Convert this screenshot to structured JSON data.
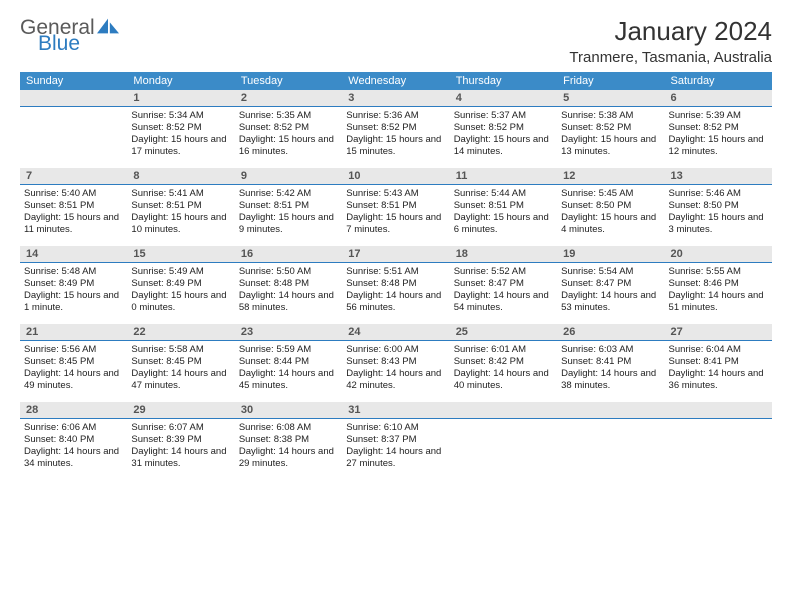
{
  "logo": {
    "part1": "General",
    "part2": "Blue",
    "icon_color": "#2d7cc0"
  },
  "title": "January 2024",
  "location": "Tranmere, Tasmania, Australia",
  "styles": {
    "header_bg": "#3b8bc8",
    "header_text": "#ffffff",
    "daynum_bg": "#e8e8e8",
    "daynum_border": "#2d7cc0",
    "body_bg": "#ffffff",
    "text_color": "#222222",
    "header_fontsize": 11,
    "daynum_fontsize": 11,
    "body_fontsize": 9.5
  },
  "day_headers": [
    "Sunday",
    "Monday",
    "Tuesday",
    "Wednesday",
    "Thursday",
    "Friday",
    "Saturday"
  ],
  "weeks": [
    [
      {
        "n": "",
        "sunrise": "",
        "sunset": "",
        "daylight": ""
      },
      {
        "n": "1",
        "sunrise": "Sunrise: 5:34 AM",
        "sunset": "Sunset: 8:52 PM",
        "daylight": "Daylight: 15 hours and 17 minutes."
      },
      {
        "n": "2",
        "sunrise": "Sunrise: 5:35 AM",
        "sunset": "Sunset: 8:52 PM",
        "daylight": "Daylight: 15 hours and 16 minutes."
      },
      {
        "n": "3",
        "sunrise": "Sunrise: 5:36 AM",
        "sunset": "Sunset: 8:52 PM",
        "daylight": "Daylight: 15 hours and 15 minutes."
      },
      {
        "n": "4",
        "sunrise": "Sunrise: 5:37 AM",
        "sunset": "Sunset: 8:52 PM",
        "daylight": "Daylight: 15 hours and 14 minutes."
      },
      {
        "n": "5",
        "sunrise": "Sunrise: 5:38 AM",
        "sunset": "Sunset: 8:52 PM",
        "daylight": "Daylight: 15 hours and 13 minutes."
      },
      {
        "n": "6",
        "sunrise": "Sunrise: 5:39 AM",
        "sunset": "Sunset: 8:52 PM",
        "daylight": "Daylight: 15 hours and 12 minutes."
      }
    ],
    [
      {
        "n": "7",
        "sunrise": "Sunrise: 5:40 AM",
        "sunset": "Sunset: 8:51 PM",
        "daylight": "Daylight: 15 hours and 11 minutes."
      },
      {
        "n": "8",
        "sunrise": "Sunrise: 5:41 AM",
        "sunset": "Sunset: 8:51 PM",
        "daylight": "Daylight: 15 hours and 10 minutes."
      },
      {
        "n": "9",
        "sunrise": "Sunrise: 5:42 AM",
        "sunset": "Sunset: 8:51 PM",
        "daylight": "Daylight: 15 hours and 9 minutes."
      },
      {
        "n": "10",
        "sunrise": "Sunrise: 5:43 AM",
        "sunset": "Sunset: 8:51 PM",
        "daylight": "Daylight: 15 hours and 7 minutes."
      },
      {
        "n": "11",
        "sunrise": "Sunrise: 5:44 AM",
        "sunset": "Sunset: 8:51 PM",
        "daylight": "Daylight: 15 hours and 6 minutes."
      },
      {
        "n": "12",
        "sunrise": "Sunrise: 5:45 AM",
        "sunset": "Sunset: 8:50 PM",
        "daylight": "Daylight: 15 hours and 4 minutes."
      },
      {
        "n": "13",
        "sunrise": "Sunrise: 5:46 AM",
        "sunset": "Sunset: 8:50 PM",
        "daylight": "Daylight: 15 hours and 3 minutes."
      }
    ],
    [
      {
        "n": "14",
        "sunrise": "Sunrise: 5:48 AM",
        "sunset": "Sunset: 8:49 PM",
        "daylight": "Daylight: 15 hours and 1 minute."
      },
      {
        "n": "15",
        "sunrise": "Sunrise: 5:49 AM",
        "sunset": "Sunset: 8:49 PM",
        "daylight": "Daylight: 15 hours and 0 minutes."
      },
      {
        "n": "16",
        "sunrise": "Sunrise: 5:50 AM",
        "sunset": "Sunset: 8:48 PM",
        "daylight": "Daylight: 14 hours and 58 minutes."
      },
      {
        "n": "17",
        "sunrise": "Sunrise: 5:51 AM",
        "sunset": "Sunset: 8:48 PM",
        "daylight": "Daylight: 14 hours and 56 minutes."
      },
      {
        "n": "18",
        "sunrise": "Sunrise: 5:52 AM",
        "sunset": "Sunset: 8:47 PM",
        "daylight": "Daylight: 14 hours and 54 minutes."
      },
      {
        "n": "19",
        "sunrise": "Sunrise: 5:54 AM",
        "sunset": "Sunset: 8:47 PM",
        "daylight": "Daylight: 14 hours and 53 minutes."
      },
      {
        "n": "20",
        "sunrise": "Sunrise: 5:55 AM",
        "sunset": "Sunset: 8:46 PM",
        "daylight": "Daylight: 14 hours and 51 minutes."
      }
    ],
    [
      {
        "n": "21",
        "sunrise": "Sunrise: 5:56 AM",
        "sunset": "Sunset: 8:45 PM",
        "daylight": "Daylight: 14 hours and 49 minutes."
      },
      {
        "n": "22",
        "sunrise": "Sunrise: 5:58 AM",
        "sunset": "Sunset: 8:45 PM",
        "daylight": "Daylight: 14 hours and 47 minutes."
      },
      {
        "n": "23",
        "sunrise": "Sunrise: 5:59 AM",
        "sunset": "Sunset: 8:44 PM",
        "daylight": "Daylight: 14 hours and 45 minutes."
      },
      {
        "n": "24",
        "sunrise": "Sunrise: 6:00 AM",
        "sunset": "Sunset: 8:43 PM",
        "daylight": "Daylight: 14 hours and 42 minutes."
      },
      {
        "n": "25",
        "sunrise": "Sunrise: 6:01 AM",
        "sunset": "Sunset: 8:42 PM",
        "daylight": "Daylight: 14 hours and 40 minutes."
      },
      {
        "n": "26",
        "sunrise": "Sunrise: 6:03 AM",
        "sunset": "Sunset: 8:41 PM",
        "daylight": "Daylight: 14 hours and 38 minutes."
      },
      {
        "n": "27",
        "sunrise": "Sunrise: 6:04 AM",
        "sunset": "Sunset: 8:41 PM",
        "daylight": "Daylight: 14 hours and 36 minutes."
      }
    ],
    [
      {
        "n": "28",
        "sunrise": "Sunrise: 6:06 AM",
        "sunset": "Sunset: 8:40 PM",
        "daylight": "Daylight: 14 hours and 34 minutes."
      },
      {
        "n": "29",
        "sunrise": "Sunrise: 6:07 AM",
        "sunset": "Sunset: 8:39 PM",
        "daylight": "Daylight: 14 hours and 31 minutes."
      },
      {
        "n": "30",
        "sunrise": "Sunrise: 6:08 AM",
        "sunset": "Sunset: 8:38 PM",
        "daylight": "Daylight: 14 hours and 29 minutes."
      },
      {
        "n": "31",
        "sunrise": "Sunrise: 6:10 AM",
        "sunset": "Sunset: 8:37 PM",
        "daylight": "Daylight: 14 hours and 27 minutes."
      },
      {
        "n": "",
        "sunrise": "",
        "sunset": "",
        "daylight": ""
      },
      {
        "n": "",
        "sunrise": "",
        "sunset": "",
        "daylight": ""
      },
      {
        "n": "",
        "sunrise": "",
        "sunset": "",
        "daylight": ""
      }
    ]
  ]
}
